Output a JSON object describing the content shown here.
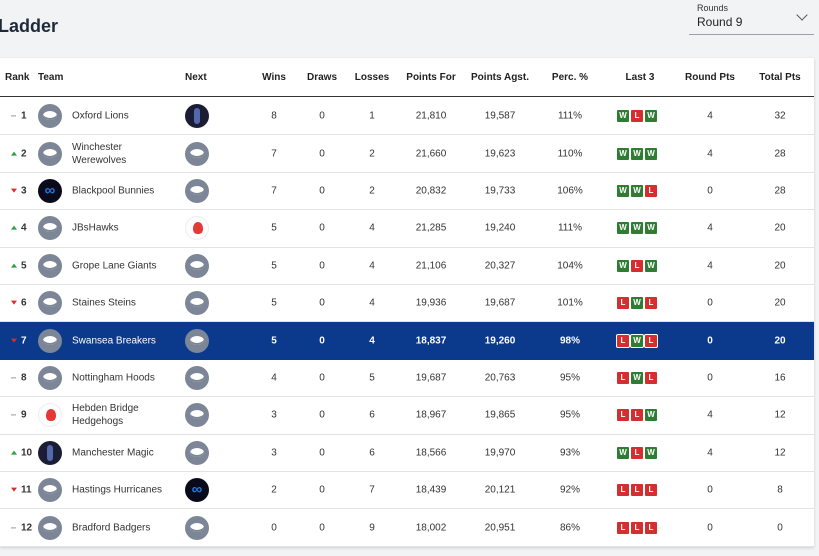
{
  "header": {
    "title": "Ladder",
    "rounds_label": "Rounds",
    "rounds_value": "Round 9"
  },
  "table": {
    "columns": {
      "rank": "Rank",
      "team": "Team",
      "next": "Next",
      "wins": "Wins",
      "draws": "Draws",
      "losses": "Losses",
      "points_for": "Points For",
      "points_agst": "Points Agst.",
      "perc": "Perc. %",
      "last3": "Last 3",
      "round_pts": "Round Pts",
      "total_pts": "Total Pts"
    },
    "rows": [
      {
        "trend": "same",
        "rank": "1",
        "logo": "puck-icon",
        "team": "Oxford Lions",
        "next": "magic-logo-icon",
        "wins": "8",
        "draws": "0",
        "losses": "1",
        "pf": "21,810",
        "pa": "19,587",
        "perc": "111%",
        "last3": [
          "W",
          "L",
          "W"
        ],
        "round_pts": "4",
        "total_pts": "32"
      },
      {
        "trend": "up",
        "rank": "2",
        "logo": "puck-icon",
        "team": "Winchester Werewolves",
        "next": "puck-icon",
        "wins": "7",
        "draws": "0",
        "losses": "2",
        "pf": "21,660",
        "pa": "19,623",
        "perc": "110%",
        "last3": [
          "W",
          "W",
          "W"
        ],
        "round_pts": "4",
        "total_pts": "28"
      },
      {
        "trend": "down",
        "rank": "3",
        "logo": "bunny-logo-icon",
        "team": "Blackpool Bunnies",
        "next": "puck-icon",
        "wins": "7",
        "draws": "0",
        "losses": "2",
        "pf": "20,832",
        "pa": "19,733",
        "perc": "106%",
        "last3": [
          "W",
          "W",
          "L"
        ],
        "round_pts": "0",
        "total_pts": "28"
      },
      {
        "trend": "up",
        "rank": "4",
        "logo": "puck-icon",
        "team": "JBsHawks",
        "next": "hawk-logo-icon",
        "wins": "5",
        "draws": "0",
        "losses": "4",
        "pf": "21,285",
        "pa": "19,240",
        "perc": "111%",
        "last3": [
          "W",
          "W",
          "W"
        ],
        "round_pts": "4",
        "total_pts": "20"
      },
      {
        "trend": "up",
        "rank": "5",
        "logo": "puck-icon",
        "team": "Grope Lane Giants",
        "next": "puck-icon",
        "wins": "5",
        "draws": "0",
        "losses": "4",
        "pf": "21,106",
        "pa": "20,327",
        "perc": "104%",
        "last3": [
          "W",
          "L",
          "W"
        ],
        "round_pts": "4",
        "total_pts": "20"
      },
      {
        "trend": "down",
        "rank": "6",
        "logo": "puck-icon",
        "team": "Staines Steins",
        "next": "puck-icon",
        "wins": "5",
        "draws": "0",
        "losses": "4",
        "pf": "19,936",
        "pa": "19,687",
        "perc": "101%",
        "last3": [
          "L",
          "W",
          "L"
        ],
        "round_pts": "0",
        "total_pts": "20"
      },
      {
        "trend": "down",
        "rank": "7",
        "logo": "puck-icon",
        "team": "Swansea Breakers",
        "next": "puck-icon",
        "wins": "5",
        "draws": "0",
        "losses": "4",
        "pf": "18,837",
        "pa": "19,260",
        "perc": "98%",
        "last3": [
          "L",
          "W",
          "L"
        ],
        "round_pts": "0",
        "total_pts": "20",
        "highlight": true
      },
      {
        "trend": "same",
        "rank": "8",
        "logo": "puck-icon",
        "team": "Nottingham Hoods",
        "next": "puck-icon",
        "wins": "4",
        "draws": "0",
        "losses": "5",
        "pf": "19,687",
        "pa": "20,763",
        "perc": "95%",
        "last3": [
          "L",
          "W",
          "L"
        ],
        "round_pts": "0",
        "total_pts": "16"
      },
      {
        "trend": "same",
        "rank": "9",
        "logo": "hawk-logo-icon",
        "team": "Hebden Bridge Hedgehogs",
        "next": "puck-icon",
        "wins": "3",
        "draws": "0",
        "losses": "6",
        "pf": "18,967",
        "pa": "19,865",
        "perc": "95%",
        "last3": [
          "L",
          "L",
          "W"
        ],
        "round_pts": "4",
        "total_pts": "12"
      },
      {
        "trend": "up",
        "rank": "10",
        "logo": "magic-logo-icon",
        "team": "Manchester Magic",
        "next": "puck-icon",
        "wins": "3",
        "draws": "0",
        "losses": "6",
        "pf": "18,566",
        "pa": "19,970",
        "perc": "93%",
        "last3": [
          "W",
          "L",
          "W"
        ],
        "round_pts": "4",
        "total_pts": "12"
      },
      {
        "trend": "down",
        "rank": "11",
        "logo": "puck-icon",
        "team": "Hastings Hurricanes",
        "next": "bunny-logo-icon",
        "wins": "2",
        "draws": "0",
        "losses": "7",
        "pf": "18,439",
        "pa": "20,121",
        "perc": "92%",
        "last3": [
          "L",
          "L",
          "L"
        ],
        "round_pts": "0",
        "total_pts": "8"
      },
      {
        "trend": "same",
        "rank": "12",
        "logo": "puck-icon",
        "team": "Bradford Badgers",
        "next": "puck-icon",
        "wins": "0",
        "draws": "0",
        "losses": "9",
        "pf": "18,002",
        "pa": "20,951",
        "perc": "86%",
        "last3": [
          "L",
          "L",
          "L"
        ],
        "round_pts": "0",
        "total_pts": "0"
      }
    ]
  },
  "colors": {
    "highlight": "#0b3a8c",
    "win": "#2e7d32",
    "loss": "#d32f2f",
    "trend_up": "#2ea043",
    "trend_down": "#d32f2f"
  }
}
